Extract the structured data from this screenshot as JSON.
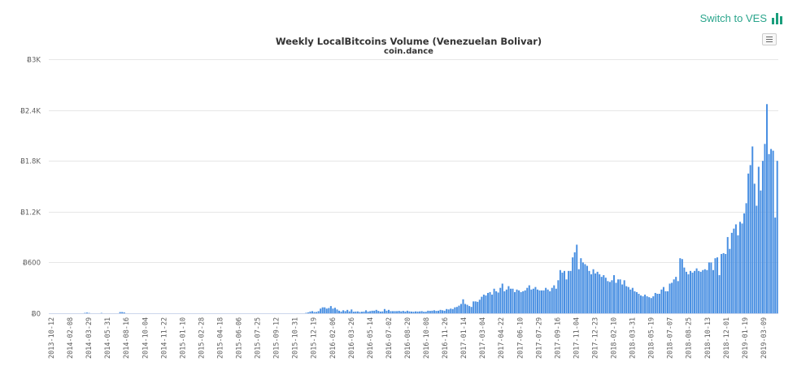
{
  "header": {
    "switch_label": "Switch to VES",
    "switch_icon": "bar-chart-icon",
    "accent_color": "#2aa58c"
  },
  "menu": {
    "icon": "hamburger-menu-icon"
  },
  "chart_data": {
    "type": "bar",
    "title": "Weekly LocalBitcoins Volume (Venezuelan Bolivar)",
    "subtitle": "coin.dance",
    "xlabel": "",
    "ylabel": "",
    "ylim": [
      0,
      3000
    ],
    "grid": true,
    "legend": "none",
    "bar_color": "#4a90e2",
    "y_ticks": [
      "Ƀ0",
      "Ƀ600",
      "Ƀ1.2K",
      "Ƀ1.8K",
      "Ƀ2.4K",
      "Ƀ3K"
    ],
    "y_tick_values": [
      0,
      600,
      1200,
      1800,
      2400,
      3000
    ],
    "x_ticks": [
      "2013-10-12",
      "2014-02-08",
      "2014-03-29",
      "2014-05-31",
      "2014-08-16",
      "2014-10-04",
      "2014-11-22",
      "2015-01-10",
      "2015-02-28",
      "2015-04-18",
      "2015-06-06",
      "2015-07-25",
      "2015-09-12",
      "2015-10-31",
      "2015-12-19",
      "2016-02-06",
      "2016-03-26",
      "2016-05-14",
      "2016-07-02",
      "2016-08-20",
      "2016-10-08",
      "2016-11-26",
      "2017-01-14",
      "2017-03-04",
      "2017-04-22",
      "2017-06-10",
      "2017-07-29",
      "2017-09-16",
      "2017-11-04",
      "2017-12-23",
      "2018-02-10",
      "2018-03-31",
      "2018-05-19",
      "2018-07-07",
      "2018-08-25",
      "2018-10-13",
      "2018-12-01",
      "2019-01-19",
      "2019-03-09"
    ],
    "start_week": "2013-10-12",
    "values": [
      0,
      0,
      0,
      0,
      0,
      0,
      0,
      0,
      0,
      0,
      0,
      0,
      0,
      0,
      0,
      0,
      0,
      5,
      8,
      4,
      0,
      0,
      0,
      0,
      0,
      4,
      0,
      0,
      0,
      0,
      0,
      0,
      0,
      0,
      14,
      14,
      10,
      0,
      0,
      0,
      0,
      0,
      0,
      0,
      0,
      0,
      0,
      0,
      0,
      0,
      0,
      0,
      0,
      0,
      0,
      0,
      0,
      0,
      0,
      0,
      0,
      0,
      0,
      0,
      0,
      0,
      0,
      0,
      0,
      0,
      0,
      0,
      0,
      0,
      0,
      0,
      0,
      0,
      0,
      0,
      0,
      0,
      0,
      0,
      0,
      0,
      0,
      0,
      0,
      0,
      0,
      0,
      0,
      0,
      0,
      0,
      0,
      0,
      0,
      0,
      0,
      0,
      0,
      0,
      0,
      0,
      0,
      0,
      0,
      0,
      0,
      0,
      0,
      0,
      0,
      0,
      0,
      0,
      0,
      0,
      0,
      0,
      0,
      0,
      5,
      10,
      20,
      25,
      15,
      15,
      25,
      55,
      70,
      70,
      55,
      62,
      85,
      55,
      65,
      45,
      30,
      20,
      35,
      25,
      40,
      22,
      45,
      18,
      20,
      22,
      15,
      18,
      20,
      35,
      20,
      25,
      30,
      30,
      40,
      28,
      20,
      22,
      50,
      30,
      40,
      25,
      25,
      25,
      25,
      28,
      22,
      28,
      20,
      30,
      22,
      20,
      18,
      22,
      20,
      22,
      25,
      18,
      18,
      30,
      28,
      30,
      35,
      28,
      30,
      40,
      35,
      30,
      50,
      45,
      55,
      50,
      70,
      75,
      90,
      110,
      165,
      110,
      100,
      85,
      75,
      140,
      140,
      135,
      160,
      195,
      220,
      210,
      240,
      250,
      220,
      290,
      260,
      245,
      300,
      350,
      260,
      280,
      320,
      290,
      290,
      250,
      280,
      270,
      250,
      260,
      270,
      300,
      330,
      280,
      290,
      310,
      280,
      270,
      270,
      270,
      300,
      280,
      260,
      300,
      330,
      290,
      390,
      510,
      480,
      500,
      400,
      500,
      500,
      660,
      720,
      810,
      520,
      650,
      600,
      580,
      560,
      500,
      460,
      520,
      470,
      490,
      460,
      430,
      450,
      420,
      380,
      370,
      390,
      450,
      360,
      400,
      400,
      340,
      390,
      320,
      310,
      280,
      300,
      260,
      250,
      230,
      210,
      200,
      220,
      200,
      190,
      180,
      200,
      240,
      230,
      230,
      280,
      310,
      260,
      260,
      350,
      360,
      400,
      430,
      380,
      650,
      640,
      540,
      490,
      460,
      500,
      480,
      500,
      530,
      500,
      490,
      510,
      520,
      510,
      600,
      600,
      510,
      650,
      660,
      450,
      700,
      710,
      700,
      900,
      760,
      950,
      1000,
      1050,
      920,
      1080,
      1060,
      1180,
      1300,
      1650,
      1750,
      1970,
      1530,
      1270,
      1730,
      1450,
      1800,
      2000,
      2470,
      1880,
      1940,
      1920,
      1130,
      1800
    ],
    "categories_note": "One bar per week starting 2013-10-12"
  }
}
